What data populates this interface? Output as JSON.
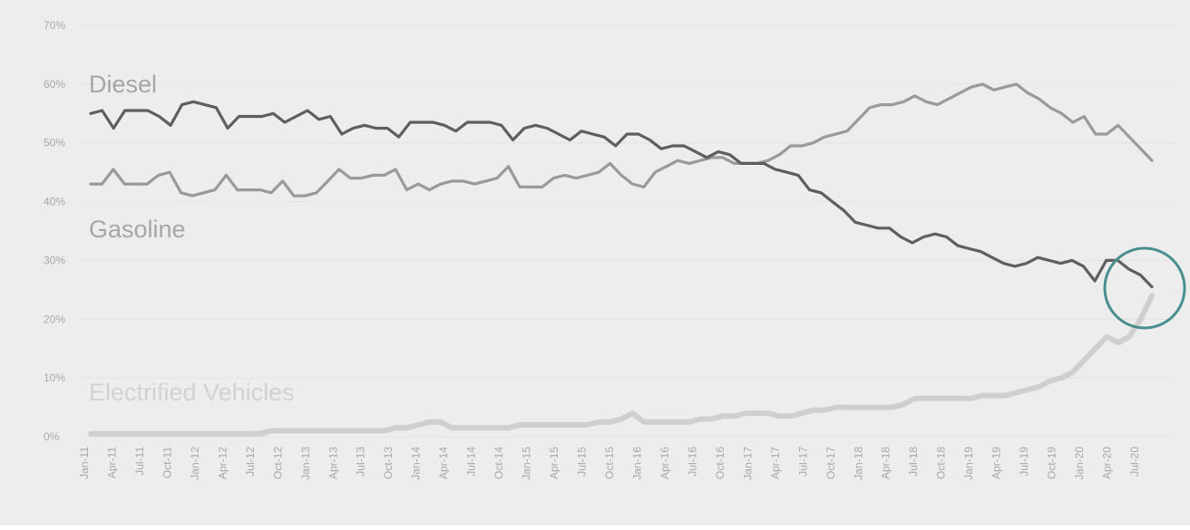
{
  "chart_data": {
    "type": "line",
    "title": "",
    "xlabel": "",
    "ylabel": "",
    "ylim": [
      0,
      70
    ],
    "y_ticks": [
      "0%",
      "10%",
      "20%",
      "30%",
      "40%",
      "50%",
      "60%",
      "70%"
    ],
    "grid": true,
    "legend": "inline labels",
    "x_tick_labels": [
      "Jan-11",
      "Apr-11",
      "Jul-11",
      "Oct-11",
      "Jan-12",
      "Apr-12",
      "Jul-12",
      "Oct-12",
      "Jan-13",
      "Apr-13",
      "Jul-13",
      "Oct-13",
      "Jan-14",
      "Apr-14",
      "Jul-14",
      "Oct-14",
      "Jan-15",
      "Apr-15",
      "Jul-15",
      "Oct-15",
      "Jan-16",
      "Apr-16",
      "Jul-16",
      "Oct-16",
      "Jan-17",
      "Apr-17",
      "Jul-17",
      "Oct-17",
      "Jan-18",
      "Apr-18",
      "Jul-18",
      "Oct-18",
      "Jan-19",
      "Apr-19",
      "Jul-19",
      "Oct-19",
      "Jan-20",
      "Apr-20",
      "Jul-20"
    ],
    "series": [
      {
        "name": "Diesel",
        "color": "#5f5f5f",
        "values": [
          55,
          55.5,
          52.5,
          55.5,
          55.5,
          55.5,
          54.5,
          53,
          56.5,
          57,
          56.5,
          56,
          52.5,
          54.5,
          54.5,
          54.5,
          55,
          53.5,
          54.5,
          55.5,
          54,
          54.5,
          51.5,
          52.5,
          53,
          52.5,
          52.5,
          51,
          53.5,
          53.5,
          53.5,
          53,
          52,
          53.5,
          53.5,
          53.5,
          53,
          50.5,
          52.5,
          53,
          52.5,
          51.5,
          50.5,
          52,
          51.5,
          51,
          49.5,
          51.5,
          51.5,
          50.5,
          49,
          49.5,
          49.5,
          48.5,
          47.5,
          48.5,
          48,
          46.5,
          46.5,
          46.5,
          45.5,
          45,
          44.5,
          42,
          41.5,
          40,
          38.5,
          36.5,
          36,
          35.5,
          35.5,
          34,
          33,
          34,
          34.5,
          34,
          32.5,
          32,
          31.5,
          30.5,
          29.5,
          29,
          29.5,
          30.5,
          30,
          29.5,
          30,
          29,
          26.5,
          30,
          30,
          28.5,
          27.5,
          25.5
        ]
      },
      {
        "name": "Gasoline",
        "color": "#9a9a9a",
        "values": [
          43,
          43,
          45.5,
          43,
          43,
          43,
          44.5,
          45,
          41.5,
          41,
          41.5,
          42,
          44.5,
          42,
          42,
          42,
          41.5,
          43.5,
          41,
          41,
          41.5,
          43.5,
          45.5,
          44,
          44,
          44.5,
          44.5,
          45.5,
          42,
          43,
          42,
          43,
          43.5,
          43.5,
          43,
          43.5,
          44,
          46,
          42.5,
          42.5,
          42.5,
          44,
          44.5,
          44,
          44.5,
          45,
          46.5,
          44.5,
          43,
          42.5,
          45,
          46,
          47,
          46.5,
          47,
          47.5,
          47.5,
          46.5,
          46.5,
          46.5,
          47,
          48,
          49.5,
          49.5,
          50,
          51,
          51.5,
          52,
          54,
          56,
          56.5,
          56.5,
          57,
          58,
          57,
          56.5,
          57.5,
          58.5,
          59.5,
          60,
          59,
          59.5,
          60,
          58.5,
          57.5,
          56,
          55,
          53.5,
          54.5,
          51.5,
          51.5,
          53,
          51,
          49,
          47
        ]
      },
      {
        "name": "Electrified Vehicles",
        "color": "#cfcfcf",
        "values": [
          0.5,
          0.5,
          0.5,
          0.5,
          0.5,
          0.5,
          0.5,
          0.5,
          0.5,
          0.5,
          0.5,
          0.5,
          0.5,
          0.5,
          0.5,
          0.5,
          1,
          1,
          1,
          1,
          1,
          1,
          1,
          1,
          1,
          1,
          1,
          1.5,
          1.5,
          2,
          2.5,
          2.5,
          1.5,
          1.5,
          1.5,
          1.5,
          1.5,
          1.5,
          2,
          2,
          2,
          2,
          2,
          2,
          2,
          2.5,
          2.5,
          3,
          4,
          2.5,
          2.5,
          2.5,
          2.5,
          2.5,
          3,
          3,
          3.5,
          3.5,
          4,
          4,
          4,
          3.5,
          3.5,
          4,
          4.5,
          4.5,
          5,
          5,
          5,
          5,
          5,
          5,
          5.5,
          6.5,
          6.5,
          6.5,
          6.5,
          6.5,
          6.5,
          7,
          7,
          7,
          7.5,
          8,
          8.5,
          9.5,
          10,
          11,
          13,
          15,
          17,
          16,
          17,
          20,
          24
        ]
      }
    ],
    "annotations": [
      {
        "type": "circle",
        "color": "#4a8f8f",
        "target": "crossover of Gasoline and Electrified Vehicles, late 2020"
      }
    ]
  }
}
